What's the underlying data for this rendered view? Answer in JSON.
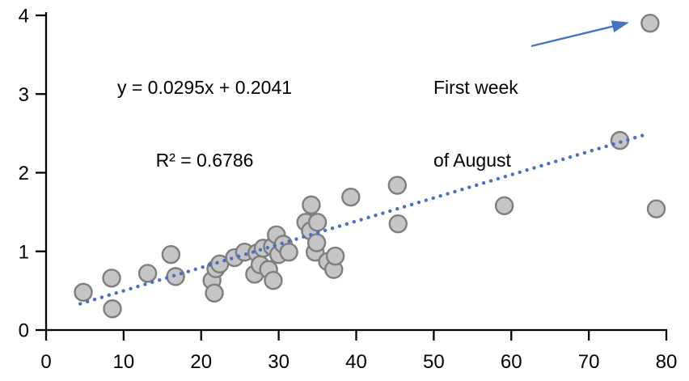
{
  "chart_data": {
    "type": "scatter",
    "title": "",
    "xlabel": "",
    "ylabel": "",
    "x_axis": {
      "min": 0,
      "max": 80,
      "ticks": [
        0,
        10,
        20,
        30,
        40,
        50,
        60,
        70,
        80
      ]
    },
    "y_axis": {
      "min": 0,
      "max": 4,
      "ticks": [
        0,
        1,
        2,
        3,
        4
      ]
    },
    "grid": "off",
    "legend": "none",
    "points": [
      [
        4.8,
        0.48
      ],
      [
        8.45,
        0.66
      ],
      [
        8.55,
        0.27
      ],
      [
        13.1,
        0.72
      ],
      [
        16.1,
        0.96
      ],
      [
        16.7,
        0.68
      ],
      [
        21.4,
        0.63
      ],
      [
        21.7,
        0.47
      ],
      [
        21.9,
        0.78
      ],
      [
        22.4,
        0.84
      ],
      [
        24.3,
        0.92
      ],
      [
        25.6,
        0.99
      ],
      [
        26.9,
        0.71
      ],
      [
        27.2,
        0.98
      ],
      [
        27.6,
        0.83
      ],
      [
        28.0,
        1.04
      ],
      [
        28.7,
        0.77
      ],
      [
        29.2,
        1.06
      ],
      [
        29.3,
        0.63
      ],
      [
        29.7,
        1.21
      ],
      [
        30.0,
        0.96
      ],
      [
        30.6,
        1.09
      ],
      [
        31.3,
        0.99
      ],
      [
        33.5,
        1.37
      ],
      [
        34.1,
        1.26
      ],
      [
        34.2,
        1.59
      ],
      [
        34.7,
        0.99
      ],
      [
        34.9,
        1.11
      ],
      [
        35.0,
        1.37
      ],
      [
        36.3,
        0.87
      ],
      [
        37.1,
        0.77
      ],
      [
        37.3,
        0.94
      ],
      [
        39.3,
        1.69
      ],
      [
        45.3,
        1.84
      ],
      [
        45.4,
        1.35
      ],
      [
        59.1,
        1.58
      ],
      [
        74.0,
        2.41
      ],
      [
        78.7,
        1.54
      ],
      [
        77.9,
        3.9
      ]
    ],
    "trendline": {
      "equation_label": "y = 0.0295x + 0.2041",
      "r_squared_label": "R² = 0.6786",
      "slope": 0.0295,
      "intercept": 0.2041,
      "x_start": 4.4,
      "x_end": 77.6,
      "style": "dotted",
      "color": "#4472C4"
    },
    "annotation": {
      "line1": "First week",
      "line2": "of August",
      "target_point": [
        77.9,
        3.9
      ],
      "arrow_color": "#4472C4"
    },
    "colors": {
      "marker_fill": "#C5C5C5",
      "marker_stroke": "#7E7E7E",
      "axis": "#000000",
      "text": "#000000",
      "background": "#FFFFFF"
    }
  }
}
